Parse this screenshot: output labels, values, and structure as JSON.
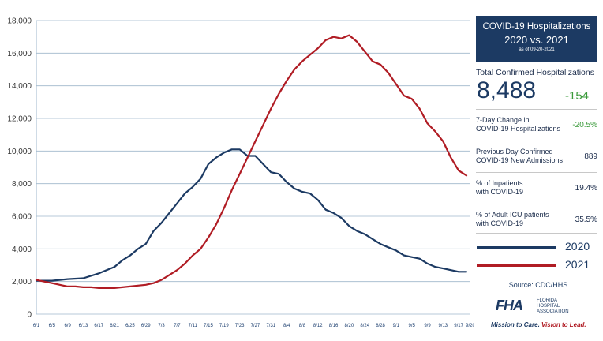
{
  "chart_data": {
    "type": "line",
    "title": "COVID-19 Hospitalizations",
    "subtitle": "2020 vs. 2021",
    "as_of": "as of 09-20-2021",
    "ylim": [
      0,
      18000
    ],
    "y_ticks": [
      "0",
      "2,000",
      "4,000",
      "6,000",
      "8,000",
      "10,000",
      "12,000",
      "14,000",
      "16,000",
      "18,000"
    ],
    "x_ticks": [
      "6/1",
      "6/5",
      "6/9",
      "6/13",
      "6/17",
      "6/21",
      "6/25",
      "6/29",
      "7/3",
      "7/7",
      "7/11",
      "7/15",
      "7/19",
      "7/23",
      "7/27",
      "7/31",
      "8/4",
      "8/8",
      "8/12",
      "8/16",
      "8/20",
      "8/24",
      "8/28",
      "9/1",
      "9/5",
      "9/9",
      "9/13",
      "9/17",
      "9/20"
    ],
    "days_total": 111,
    "series": [
      {
        "name": "2020",
        "color": "#1c3a63",
        "points": [
          [
            0,
            2050
          ],
          [
            4,
            2050
          ],
          [
            8,
            2150
          ],
          [
            12,
            2200
          ],
          [
            16,
            2500
          ],
          [
            20,
            2900
          ],
          [
            22,
            3300
          ],
          [
            24,
            3600
          ],
          [
            26,
            4000
          ],
          [
            28,
            4300
          ],
          [
            30,
            5100
          ],
          [
            32,
            5600
          ],
          [
            34,
            6200
          ],
          [
            36,
            6800
          ],
          [
            38,
            7400
          ],
          [
            40,
            7800
          ],
          [
            42,
            8300
          ],
          [
            44,
            9200
          ],
          [
            46,
            9600
          ],
          [
            48,
            9900
          ],
          [
            50,
            10100
          ],
          [
            52,
            10100
          ],
          [
            54,
            9700
          ],
          [
            56,
            9700
          ],
          [
            58,
            9200
          ],
          [
            60,
            8700
          ],
          [
            62,
            8600
          ],
          [
            64,
            8100
          ],
          [
            66,
            7700
          ],
          [
            68,
            7500
          ],
          [
            70,
            7400
          ],
          [
            72,
            7000
          ],
          [
            74,
            6400
          ],
          [
            76,
            6200
          ],
          [
            78,
            5900
          ],
          [
            80,
            5400
          ],
          [
            82,
            5100
          ],
          [
            84,
            4900
          ],
          [
            86,
            4600
          ],
          [
            88,
            4300
          ],
          [
            90,
            4100
          ],
          [
            92,
            3900
          ],
          [
            94,
            3600
          ],
          [
            96,
            3500
          ],
          [
            98,
            3400
          ],
          [
            100,
            3100
          ],
          [
            102,
            2900
          ],
          [
            104,
            2800
          ],
          [
            106,
            2700
          ],
          [
            108,
            2600
          ],
          [
            110,
            2600
          ]
        ]
      },
      {
        "name": "2021",
        "color": "#b01c24",
        "points": [
          [
            0,
            2100
          ],
          [
            2,
            2000
          ],
          [
            4,
            1900
          ],
          [
            6,
            1800
          ],
          [
            8,
            1700
          ],
          [
            10,
            1700
          ],
          [
            12,
            1650
          ],
          [
            14,
            1650
          ],
          [
            16,
            1600
          ],
          [
            18,
            1600
          ],
          [
            20,
            1600
          ],
          [
            22,
            1650
          ],
          [
            24,
            1700
          ],
          [
            26,
            1750
          ],
          [
            28,
            1800
          ],
          [
            30,
            1900
          ],
          [
            32,
            2100
          ],
          [
            34,
            2400
          ],
          [
            36,
            2700
          ],
          [
            38,
            3100
          ],
          [
            40,
            3600
          ],
          [
            42,
            4000
          ],
          [
            44,
            4700
          ],
          [
            46,
            5500
          ],
          [
            48,
            6500
          ],
          [
            50,
            7600
          ],
          [
            52,
            8600
          ],
          [
            54,
            9600
          ],
          [
            56,
            10600
          ],
          [
            58,
            11600
          ],
          [
            60,
            12600
          ],
          [
            62,
            13500
          ],
          [
            64,
            14300
          ],
          [
            66,
            15000
          ],
          [
            68,
            15500
          ],
          [
            70,
            15900
          ],
          [
            72,
            16300
          ],
          [
            74,
            16800
          ],
          [
            76,
            17000
          ],
          [
            78,
            16900
          ],
          [
            80,
            17100
          ],
          [
            82,
            16700
          ],
          [
            84,
            16100
          ],
          [
            86,
            15500
          ],
          [
            88,
            15300
          ],
          [
            90,
            14800
          ],
          [
            92,
            14100
          ],
          [
            94,
            13400
          ],
          [
            96,
            13200
          ],
          [
            98,
            12600
          ],
          [
            100,
            11700
          ],
          [
            102,
            11200
          ],
          [
            104,
            10600
          ],
          [
            106,
            9600
          ],
          [
            108,
            8800
          ],
          [
            110,
            8500
          ]
        ]
      }
    ],
    "legend_placement": "right"
  },
  "panel": {
    "title_line1": "COVID-19 Hospitalizations",
    "title_line2": "2020 vs. 2021",
    "as_of": "as of 09-20-2021",
    "total_label": "Total Confirmed Hospitalizations",
    "total_value": "8,488",
    "total_change": "-154",
    "stats": [
      {
        "label_line1": "7-Day Change in",
        "label_line2": "COVID-19 Hospitalizations",
        "value": "-20.5%"
      },
      {
        "label_line1": "Previous Day Confirmed",
        "label_line2": "COVID-19 New Admissions",
        "value": "889"
      },
      {
        "label_line1": "% of Inpatients",
        "label_line2": "with COVID-19",
        "value": "19.4%"
      },
      {
        "label_line1": "% of Adult ICU patients",
        "label_line2": "with COVID-19",
        "value": "35.5%"
      }
    ],
    "legend": [
      {
        "label": "2020",
        "color": "#1c3a63"
      },
      {
        "label": "2021",
        "color": "#b01c24"
      }
    ],
    "source": "Source: CDC/HHS",
    "logo_text": "FHA",
    "logo_sub_line1": "FLORIDA",
    "logo_sub_line2": "HOSPITAL",
    "logo_sub_line3": "ASSOCIATION",
    "tagline_part1": "Mission to Care.",
    "tagline_part2": "Vision to Lead."
  }
}
